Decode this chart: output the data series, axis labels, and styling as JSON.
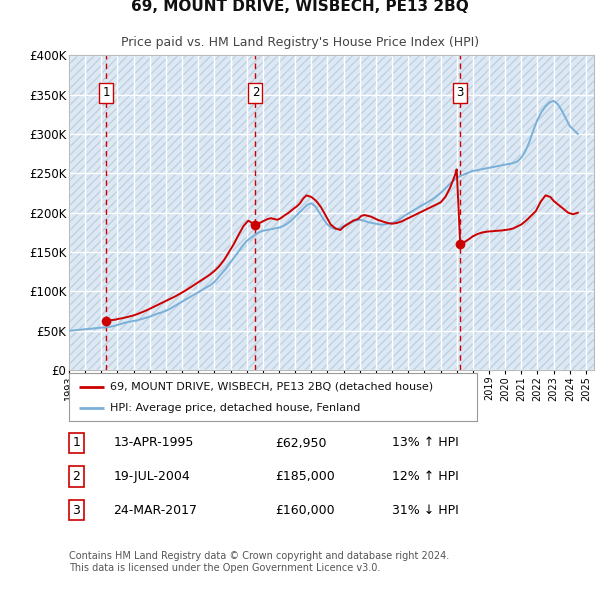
{
  "title": "69, MOUNT DRIVE, WISBECH, PE13 2BQ",
  "subtitle": "Price paid vs. HM Land Registry's House Price Index (HPI)",
  "ylim": [
    0,
    400000
  ],
  "yticks": [
    0,
    50000,
    100000,
    150000,
    200000,
    250000,
    300000,
    350000,
    400000
  ],
  "ytick_labels": [
    "£0",
    "£50K",
    "£100K",
    "£150K",
    "£200K",
    "£250K",
    "£300K",
    "£350K",
    "£400K"
  ],
  "xlim_start": 1993.0,
  "xlim_end": 2025.5,
  "background_color": "#dce9f5",
  "hatch_color": "#c0d0e0",
  "grid_color": "#ffffff",
  "red_line_color": "#cc0000",
  "blue_line_color": "#7ab0d8",
  "sale_marker_color": "#cc0000",
  "vline_color": "#cc0000",
  "transactions": [
    {
      "num": 1,
      "date_x": 1995.29,
      "marker_y": 62950
    },
    {
      "num": 2,
      "date_x": 2004.54,
      "marker_y": 185000
    },
    {
      "num": 3,
      "date_x": 2017.22,
      "marker_y": 160000
    }
  ],
  "legend_red_label": "69, MOUNT DRIVE, WISBECH, PE13 2BQ (detached house)",
  "legend_blue_label": "HPI: Average price, detached house, Fenland",
  "footer_text": "Contains HM Land Registry data © Crown copyright and database right 2024.\nThis data is licensed under the Open Government Licence v3.0.",
  "table_rows": [
    [
      "1",
      "13-APR-1995",
      "£62,950",
      "13% ↑ HPI"
    ],
    [
      "2",
      "19-JUL-2004",
      "£185,000",
      "12% ↑ HPI"
    ],
    [
      "3",
      "24-MAR-2017",
      "£160,000",
      "31% ↓ HPI"
    ]
  ],
  "hpi_data_x": [
    1993.0,
    1993.25,
    1993.5,
    1993.75,
    1994.0,
    1994.25,
    1994.5,
    1994.75,
    1995.0,
    1995.25,
    1995.5,
    1995.75,
    1996.0,
    1996.25,
    1996.5,
    1996.75,
    1997.0,
    1997.25,
    1997.5,
    1997.75,
    1998.0,
    1998.25,
    1998.5,
    1998.75,
    1999.0,
    1999.25,
    1999.5,
    1999.75,
    2000.0,
    2000.25,
    2000.5,
    2000.75,
    2001.0,
    2001.25,
    2001.5,
    2001.75,
    2002.0,
    2002.25,
    2002.5,
    2002.75,
    2003.0,
    2003.25,
    2003.5,
    2003.75,
    2004.0,
    2004.25,
    2004.5,
    2004.75,
    2005.0,
    2005.25,
    2005.5,
    2005.75,
    2006.0,
    2006.25,
    2006.5,
    2006.75,
    2007.0,
    2007.25,
    2007.5,
    2007.75,
    2008.0,
    2008.25,
    2008.5,
    2008.75,
    2009.0,
    2009.25,
    2009.5,
    2009.75,
    2010.0,
    2010.25,
    2010.5,
    2010.75,
    2011.0,
    2011.25,
    2011.5,
    2011.75,
    2012.0,
    2012.25,
    2012.5,
    2012.75,
    2013.0,
    2013.25,
    2013.5,
    2013.75,
    2014.0,
    2014.25,
    2014.5,
    2014.75,
    2015.0,
    2015.25,
    2015.5,
    2015.75,
    2016.0,
    2016.25,
    2016.5,
    2016.75,
    2017.0,
    2017.25,
    2017.5,
    2017.75,
    2018.0,
    2018.25,
    2018.5,
    2018.75,
    2019.0,
    2019.25,
    2019.5,
    2019.75,
    2020.0,
    2020.25,
    2020.5,
    2020.75,
    2021.0,
    2021.25,
    2021.5,
    2021.75,
    2022.0,
    2022.25,
    2022.5,
    2022.75,
    2023.0,
    2023.25,
    2023.5,
    2023.75,
    2024.0,
    2024.25,
    2024.5
  ],
  "hpi_data_y": [
    50000,
    50500,
    51000,
    51500,
    52000,
    52500,
    53000,
    53500,
    54000,
    54500,
    55000,
    56000,
    57500,
    59000,
    60500,
    61500,
    62500,
    63500,
    65000,
    66500,
    68000,
    70000,
    72000,
    73500,
    75500,
    78000,
    81000,
    84000,
    87000,
    90000,
    93000,
    96000,
    99000,
    102000,
    105000,
    108000,
    112000,
    118000,
    124000,
    130000,
    137000,
    144000,
    151000,
    158000,
    164000,
    168000,
    172000,
    175000,
    177000,
    178000,
    179000,
    180000,
    181000,
    183000,
    186000,
    190000,
    195000,
    200000,
    205000,
    210000,
    212000,
    208000,
    200000,
    192000,
    185000,
    181000,
    179000,
    180000,
    183000,
    186000,
    188000,
    190000,
    191000,
    190000,
    188000,
    187000,
    186000,
    185000,
    185000,
    186000,
    187000,
    189000,
    192000,
    196000,
    199000,
    202000,
    205000,
    208000,
    211000,
    214000,
    217000,
    221000,
    225000,
    230000,
    235000,
    240000,
    244000,
    247000,
    249000,
    251000,
    253000,
    254000,
    255000,
    256000,
    257000,
    258000,
    259000,
    260000,
    261000,
    262000,
    263000,
    265000,
    270000,
    278000,
    290000,
    305000,
    318000,
    328000,
    335000,
    340000,
    342000,
    338000,
    330000,
    320000,
    310000,
    305000,
    300000
  ],
  "red_data_x": [
    1995.29,
    1995.4,
    1995.6,
    1995.9,
    1996.0,
    1996.3,
    1996.6,
    1996.9,
    1997.2,
    1997.5,
    1997.8,
    1998.1,
    1998.4,
    1998.7,
    1999.0,
    1999.3,
    1999.6,
    1999.9,
    2000.2,
    2000.5,
    2000.8,
    2001.1,
    2001.4,
    2001.7,
    2002.0,
    2002.3,
    2002.6,
    2002.9,
    2003.2,
    2003.5,
    2003.8,
    2004.1,
    2004.4,
    2004.54,
    2004.7,
    2004.9,
    2005.1,
    2005.3,
    2005.5,
    2005.7,
    2005.9,
    2006.1,
    2006.3,
    2006.6,
    2006.9,
    2007.1,
    2007.3,
    2007.5,
    2007.7,
    2008.0,
    2008.3,
    2008.6,
    2008.9,
    2009.2,
    2009.5,
    2009.8,
    2010.0,
    2010.3,
    2010.6,
    2010.9,
    2011.1,
    2011.3,
    2011.5,
    2011.7,
    2011.9,
    2012.1,
    2012.4,
    2012.7,
    2013.0,
    2013.3,
    2013.6,
    2013.9,
    2014.2,
    2014.5,
    2014.8,
    2015.0,
    2015.3,
    2015.5,
    2015.7,
    2016.0,
    2016.3,
    2016.6,
    2016.9,
    2017.0,
    2017.22,
    2017.5,
    2017.8,
    2018.0,
    2018.3,
    2018.6,
    2018.9,
    2019.2,
    2019.5,
    2019.8,
    2020.0,
    2020.3,
    2020.5,
    2020.7,
    2021.0,
    2021.3,
    2021.6,
    2021.9,
    2022.2,
    2022.5,
    2022.8,
    2023.0,
    2023.3,
    2023.6,
    2023.9,
    2024.2,
    2024.5
  ],
  "red_data_y": [
    62950,
    63200,
    63600,
    64200,
    65000,
    66000,
    67500,
    69000,
    71000,
    73500,
    76000,
    79000,
    82000,
    85000,
    88000,
    91000,
    94000,
    97500,
    101000,
    105000,
    109000,
    113000,
    117000,
    121000,
    126000,
    132000,
    140000,
    150000,
    160000,
    172000,
    183000,
    190000,
    186000,
    185000,
    186000,
    188000,
    190000,
    192000,
    193000,
    192000,
    191000,
    193000,
    196000,
    200000,
    205000,
    208000,
    212000,
    218000,
    222000,
    220000,
    215000,
    207000,
    196000,
    185000,
    180000,
    178000,
    182000,
    186000,
    190000,
    192000,
    196000,
    197000,
    196000,
    195000,
    193000,
    191000,
    189000,
    187000,
    186000,
    187000,
    189000,
    192000,
    195000,
    198000,
    201000,
    203000,
    206000,
    208000,
    210000,
    213000,
    220000,
    232000,
    248000,
    255000,
    160000,
    163000,
    167000,
    170000,
    173000,
    175000,
    176000,
    176500,
    177000,
    177500,
    178000,
    179000,
    180000,
    182000,
    185000,
    190000,
    196000,
    202000,
    214000,
    222000,
    220000,
    215000,
    210000,
    205000,
    200000,
    198000,
    200000
  ]
}
